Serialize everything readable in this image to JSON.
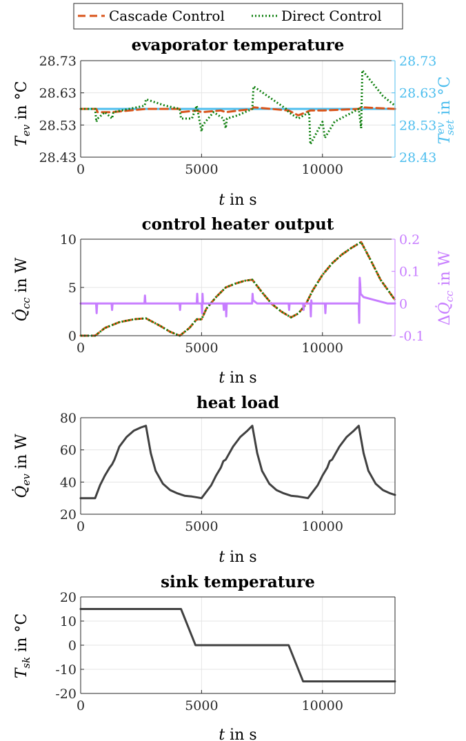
{
  "legend": {
    "entries": [
      {
        "label": "Cascade Control",
        "color": "#d95319",
        "style": "dashed"
      },
      {
        "label": "Direct Control",
        "color": "#0a7d0a",
        "style": "dotted"
      }
    ]
  },
  "colors": {
    "axis": "#262626",
    "grid": "#e5e5e5",
    "setpoint": "#4dbeee",
    "delta": "#c77dff",
    "dark": "#404040"
  },
  "chart_data": [
    {
      "type": "line",
      "title": "evaporator temperature",
      "xlabel": "t in s",
      "ylabel": "T_ev in °C",
      "ylabel_right": "T_set^ev in °C",
      "xlim": [
        0,
        13000
      ],
      "xticks": [
        0,
        5000,
        10000
      ],
      "xtick_labels": [
        "0",
        "5000",
        "10000"
      ],
      "ylim": [
        28.43,
        28.73
      ],
      "yticks": [
        28.43,
        28.53,
        28.63,
        28.73
      ],
      "ytick_labels": [
        "28.43",
        "28.53",
        "28.63",
        "28.73"
      ],
      "ylim_right": [
        28.43,
        28.73
      ],
      "ytick_labels_right": [
        "28.43",
        "28.53",
        "28.63",
        "28.73"
      ],
      "grid": true,
      "series": [
        {
          "name": "T_set^ev",
          "axis": "right",
          "color": "#4dbeee",
          "style": "solid",
          "x": [
            0,
            13000
          ],
          "y": [
            28.58,
            28.58
          ]
        },
        {
          "name": "Cascade Control",
          "color": "#d95319",
          "style": "dashed",
          "x": [
            0,
            650,
            700,
            1300,
            2700,
            3500,
            4100,
            4150,
            4800,
            5000,
            5800,
            6000,
            7100,
            7150,
            8600,
            9000,
            9500,
            10000,
            11500,
            11600,
            13000
          ],
          "y": [
            28.58,
            28.58,
            28.57,
            28.57,
            28.58,
            28.58,
            28.58,
            28.57,
            28.575,
            28.57,
            28.575,
            28.57,
            28.58,
            28.585,
            28.575,
            28.56,
            28.575,
            28.575,
            28.58,
            28.585,
            28.58
          ]
        },
        {
          "name": "Direct Control",
          "color": "#0a7d0a",
          "style": "dotted",
          "x": [
            0,
            600,
            650,
            700,
            1000,
            1300,
            1350,
            2650,
            2700,
            3500,
            4100,
            4150,
            4600,
            4800,
            5000,
            5050,
            5500,
            5900,
            6000,
            6050,
            6500,
            7100,
            7150,
            8500,
            8600,
            9000,
            9450,
            9500,
            10000,
            10100,
            10500,
            11500,
            11600,
            11650,
            12500,
            13000
          ],
          "y": [
            28.58,
            28.58,
            28.54,
            28.55,
            28.57,
            28.55,
            28.57,
            28.59,
            28.61,
            28.59,
            28.58,
            28.55,
            28.55,
            28.59,
            28.51,
            28.53,
            28.57,
            28.55,
            28.52,
            28.55,
            28.56,
            28.58,
            28.65,
            28.58,
            28.57,
            28.55,
            28.57,
            28.47,
            28.54,
            28.49,
            28.54,
            28.58,
            28.52,
            28.7,
            28.62,
            28.59
          ]
        }
      ]
    },
    {
      "type": "line",
      "title": "control heater output",
      "xlabel": "t in s",
      "ylabel": "Q̇_cc in W",
      "ylabel_right": "ΔQ̇_cc in W",
      "xlim": [
        0,
        13000
      ],
      "xticks": [
        0,
        5000,
        10000
      ],
      "xtick_labels": [
        "0",
        "5000",
        "10000"
      ],
      "ylim": [
        0,
        10
      ],
      "yticks": [
        0,
        5,
        10
      ],
      "ytick_labels": [
        "0",
        "5",
        "10"
      ],
      "ylim_right": [
        -0.1,
        0.2
      ],
      "yticks_right": [
        -0.1,
        0,
        0.1,
        0.2
      ],
      "ytick_labels_right": [
        "-0.1",
        "0",
        "0.1",
        "0.2"
      ],
      "grid": true,
      "series": [
        {
          "name": "Cascade Control",
          "color": "#d95319",
          "style": "dashed",
          "x": [
            0,
            600,
            1000,
            1600,
            2200,
            2700,
            3300,
            3700,
            4100,
            4500,
            4800,
            5000,
            5200,
            5600,
            6000,
            6400,
            6800,
            7100,
            7500,
            7900,
            8300,
            8700,
            9000,
            9300,
            9600,
            10000,
            10400,
            10800,
            11200,
            11600,
            12000,
            12400,
            12800,
            13000
          ],
          "y": [
            0,
            0,
            0.8,
            1.4,
            1.7,
            1.8,
            1.0,
            0.4,
            0,
            0.8,
            1.7,
            1.7,
            2.8,
            4.0,
            5.0,
            5.4,
            5.7,
            5.8,
            4.5,
            3.3,
            2.5,
            1.9,
            2.3,
            3.2,
            4.7,
            6.3,
            7.5,
            8.4,
            9.1,
            9.7,
            7.8,
            5.8,
            4.4,
            3.7
          ]
        },
        {
          "name": "Direct Control",
          "color": "#0a7d0a",
          "style": "dotted",
          "x": [
            0,
            600,
            1000,
            1600,
            2200,
            2700,
            3300,
            3700,
            4100,
            4500,
            4800,
            5000,
            5200,
            5600,
            6000,
            6400,
            6800,
            7100,
            7500,
            7900,
            8300,
            8700,
            9000,
            9300,
            9600,
            10000,
            10400,
            10800,
            11200,
            11600,
            12000,
            12400,
            12800,
            13000
          ],
          "y": [
            0,
            0,
            0.8,
            1.4,
            1.7,
            1.8,
            1.0,
            0.4,
            0,
            0.8,
            1.7,
            1.7,
            2.8,
            4.0,
            5.0,
            5.4,
            5.7,
            5.8,
            4.5,
            3.3,
            2.5,
            1.9,
            2.3,
            3.2,
            4.7,
            6.3,
            7.5,
            8.4,
            9.1,
            9.7,
            7.8,
            5.8,
            4.4,
            3.7
          ]
        },
        {
          "name": "ΔQ̇_cc",
          "axis": "right",
          "color": "#c77dff",
          "style": "solid",
          "x": [
            0,
            640,
            660,
            680,
            700,
            1280,
            1300,
            1320,
            2640,
            2660,
            2680,
            2700,
            4090,
            4110,
            4130,
            4700,
            4800,
            4820,
            4840,
            5000,
            5020,
            5040,
            5060,
            5900,
            5920,
            5940,
            6000,
            6020,
            6040,
            7090,
            7110,
            7130,
            7300,
            8600,
            8620,
            8640,
            9100,
            9200,
            9220,
            9240,
            9400,
            9500,
            9520,
            9540,
            9560,
            9600,
            10100,
            10120,
            10140,
            11500,
            11520,
            11540,
            11560,
            11580,
            11700,
            12200,
            12700,
            13000
          ],
          "y": [
            0.0,
            0.0,
            -0.03,
            0.0,
            0.0,
            0.0,
            -0.02,
            0.0,
            0.0,
            0.025,
            0.0,
            0.0,
            0.0,
            -0.02,
            0.0,
            0.0,
            0.0,
            0.03,
            0.0,
            0.0,
            -0.03,
            0.03,
            0.0,
            0.0,
            -0.02,
            0.0,
            0.0,
            -0.04,
            0.0,
            0.0,
            0.03,
            0.01,
            0.0,
            0.0,
            -0.02,
            0.0,
            0.0,
            0.0,
            -0.02,
            0.0,
            0.0,
            0.0,
            -0.04,
            0.01,
            0.0,
            0.0,
            0.0,
            -0.03,
            0.0,
            0.0,
            -0.06,
            0.08,
            0.06,
            0.03,
            0.02,
            0.01,
            0.0,
            0.0
          ]
        }
      ]
    },
    {
      "type": "line",
      "title": "heat load",
      "xlabel": "t in s",
      "ylabel": "Q̇_ev in W",
      "xlim": [
        0,
        13000
      ],
      "xticks": [
        0,
        5000,
        10000
      ],
      "xtick_labels": [
        "0",
        "5000",
        "10000"
      ],
      "ylim": [
        20,
        80
      ],
      "yticks": [
        20,
        40,
        60,
        80
      ],
      "ytick_labels": [
        "20",
        "40",
        "60",
        "80"
      ],
      "grid": true,
      "series": [
        {
          "color": "#404040",
          "style": "solid",
          "x": [
            0,
            600,
            800,
            1000,
            1200,
            1300,
            1400,
            1600,
            1900,
            2200,
            2500,
            2700,
            2900,
            3100,
            3400,
            3700,
            4000,
            4300,
            4600,
            5000,
            5400,
            5600,
            5800,
            5900,
            6000,
            6300,
            6600,
            6900,
            7100,
            7300,
            7500,
            7800,
            8100,
            8400,
            8700,
            9000,
            9400,
            9800,
            10000,
            10200,
            10300,
            10400,
            10700,
            11000,
            11300,
            11500,
            11700,
            11900,
            12200,
            12500,
            12800,
            13000
          ],
          "y": [
            30,
            30,
            38,
            44,
            49,
            51,
            54,
            62,
            68,
            72,
            74,
            75,
            58,
            47,
            39,
            35,
            33,
            31.5,
            31,
            30,
            38,
            44,
            49,
            53,
            54,
            62,
            68,
            72,
            75,
            58,
            47,
            39,
            35,
            33,
            31.5,
            31,
            30,
            38,
            44,
            49,
            53,
            54,
            62,
            68,
            72,
            75,
            58,
            47,
            39,
            35,
            33,
            32
          ]
        }
      ]
    },
    {
      "type": "line",
      "title": "sink temperature",
      "xlabel": "t in s",
      "ylabel": "T_sk in °C",
      "xlim": [
        0,
        13000
      ],
      "xticks": [
        0,
        5000,
        10000
      ],
      "xtick_labels": [
        "0",
        "5000",
        "10000"
      ],
      "ylim": [
        -20,
        20
      ],
      "yticks": [
        -20,
        -10,
        0,
        10,
        20
      ],
      "ytick_labels": [
        "-20",
        "-10",
        "0",
        "10",
        "20"
      ],
      "grid": true,
      "series": [
        {
          "color": "#404040",
          "style": "solid",
          "x": [
            0,
            4150,
            4750,
            8600,
            9200,
            13000
          ],
          "y": [
            15,
            15,
            0,
            0,
            -15,
            -15
          ]
        }
      ]
    }
  ]
}
